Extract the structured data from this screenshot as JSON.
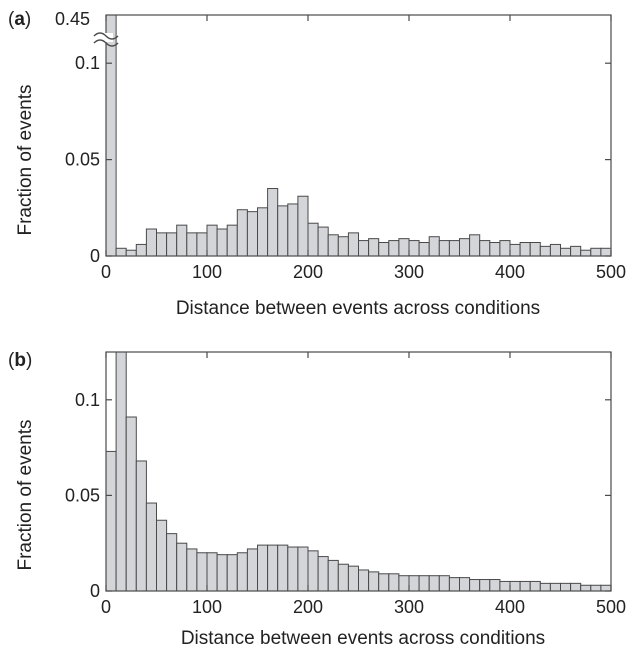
{
  "colors": {
    "bar_fill": "#d3d5d9",
    "bar_stroke": "#4a4a4a",
    "axis": "#4a4a4a",
    "text": "#222222"
  },
  "chart_data": [
    {
      "panel": "a",
      "type": "bar",
      "histogram": true,
      "panel_label_open": "(",
      "panel_label_letter": "a",
      "panel_label_close": ")",
      "xlabel": "Distance between events across conditions",
      "ylabel": "Fraction of events",
      "xlim": [
        0,
        500
      ],
      "ylim": [
        0,
        0.125
      ],
      "y_axis_break": true,
      "x_ticks": [
        "0",
        "100",
        "200",
        "300",
        "400",
        "500"
      ],
      "y_ticks": [
        "0",
        "0.05",
        "0.1"
      ],
      "y_break_label": "0.45",
      "bin_width": 10,
      "bin_starts": [
        0,
        10,
        20,
        30,
        40,
        50,
        60,
        70,
        80,
        90,
        100,
        110,
        120,
        130,
        140,
        150,
        160,
        170,
        180,
        190,
        200,
        210,
        220,
        230,
        240,
        250,
        260,
        270,
        280,
        290,
        300,
        310,
        320,
        330,
        340,
        350,
        360,
        370,
        380,
        390,
        400,
        410,
        420,
        430,
        440,
        450,
        460,
        470,
        480,
        490
      ],
      "values": [
        0.45,
        0.004,
        0.003,
        0.006,
        0.014,
        0.012,
        0.012,
        0.016,
        0.012,
        0.012,
        0.016,
        0.014,
        0.016,
        0.024,
        0.023,
        0.025,
        0.035,
        0.026,
        0.027,
        0.031,
        0.017,
        0.015,
        0.011,
        0.01,
        0.012,
        0.008,
        0.009,
        0.007,
        0.008,
        0.009,
        0.008,
        0.007,
        0.01,
        0.008,
        0.008,
        0.009,
        0.011,
        0.008,
        0.007,
        0.008,
        0.006,
        0.007,
        0.007,
        0.005,
        0.006,
        0.004,
        0.005,
        0.003,
        0.004,
        0.004
      ]
    },
    {
      "panel": "b",
      "type": "bar",
      "histogram": true,
      "panel_label_open": "(",
      "panel_label_letter": "b",
      "panel_label_close": ")",
      "xlabel": "Distance between events across conditions",
      "ylabel": "Fraction of events",
      "xlim": [
        0,
        500
      ],
      "ylim": [
        0,
        0.125
      ],
      "y_axis_break": false,
      "x_ticks": [
        "0",
        "100",
        "200",
        "300",
        "400",
        "500"
      ],
      "y_ticks": [
        "0",
        "0.05",
        "0.1"
      ],
      "bin_width": 10,
      "bin_starts": [
        0,
        10,
        20,
        30,
        40,
        50,
        60,
        70,
        80,
        90,
        100,
        110,
        120,
        130,
        140,
        150,
        160,
        170,
        180,
        190,
        200,
        210,
        220,
        230,
        240,
        250,
        260,
        270,
        280,
        290,
        300,
        310,
        320,
        330,
        340,
        350,
        360,
        370,
        380,
        390,
        400,
        410,
        420,
        430,
        440,
        450,
        460,
        470,
        480,
        490
      ],
      "values": [
        0.073,
        0.13,
        0.091,
        0.068,
        0.046,
        0.037,
        0.03,
        0.025,
        0.022,
        0.02,
        0.02,
        0.019,
        0.019,
        0.02,
        0.022,
        0.024,
        0.024,
        0.024,
        0.023,
        0.023,
        0.021,
        0.018,
        0.016,
        0.014,
        0.013,
        0.011,
        0.01,
        0.009,
        0.009,
        0.008,
        0.008,
        0.008,
        0.008,
        0.008,
        0.007,
        0.007,
        0.006,
        0.006,
        0.006,
        0.005,
        0.005,
        0.005,
        0.005,
        0.004,
        0.004,
        0.004,
        0.004,
        0.003,
        0.003,
        0.003
      ]
    }
  ]
}
